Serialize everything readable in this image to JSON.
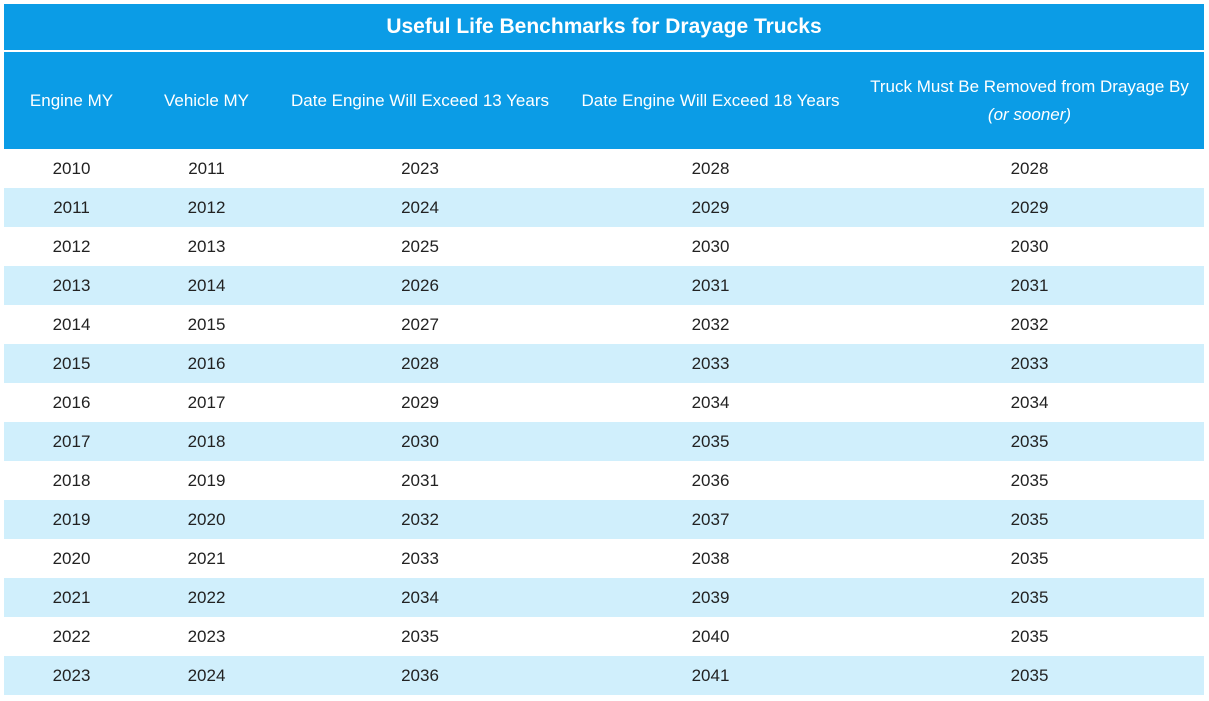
{
  "title": "Useful Life Benchmarks for Drayage Trucks",
  "headers": {
    "engine_my": "Engine MY",
    "vehicle_my": "Vehicle MY",
    "exceed13": "Date Engine Will Exceed 13 Years",
    "exceed18": "Date Engine Will Exceed 18 Years",
    "removed": "Truck Must Be Removed from Drayage By",
    "removed_sub": "(or sooner)"
  },
  "colors": {
    "header_bg": "#0b9ce6",
    "stripe_bg": "#d0effc"
  },
  "rows": [
    [
      "2010",
      "2011",
      "2023",
      "2028",
      "2028"
    ],
    [
      "2011",
      "2012",
      "2024",
      "2029",
      "2029"
    ],
    [
      "2012",
      "2013",
      "2025",
      "2030",
      "2030"
    ],
    [
      "2013",
      "2014",
      "2026",
      "2031",
      "2031"
    ],
    [
      "2014",
      "2015",
      "2027",
      "2032",
      "2032"
    ],
    [
      "2015",
      "2016",
      "2028",
      "2033",
      "2033"
    ],
    [
      "2016",
      "2017",
      "2029",
      "2034",
      "2034"
    ],
    [
      "2017",
      "2018",
      "2030",
      "2035",
      "2035"
    ],
    [
      "2018",
      "2019",
      "2031",
      "2036",
      "2035"
    ],
    [
      "2019",
      "2020",
      "2032",
      "2037",
      "2035"
    ],
    [
      "2020",
      "2021",
      "2033",
      "2038",
      "2035"
    ],
    [
      "2021",
      "2022",
      "2034",
      "2039",
      "2035"
    ],
    [
      "2022",
      "2023",
      "2035",
      "2040",
      "2035"
    ],
    [
      "2023",
      "2024",
      "2036",
      "2041",
      "2035"
    ]
  ]
}
